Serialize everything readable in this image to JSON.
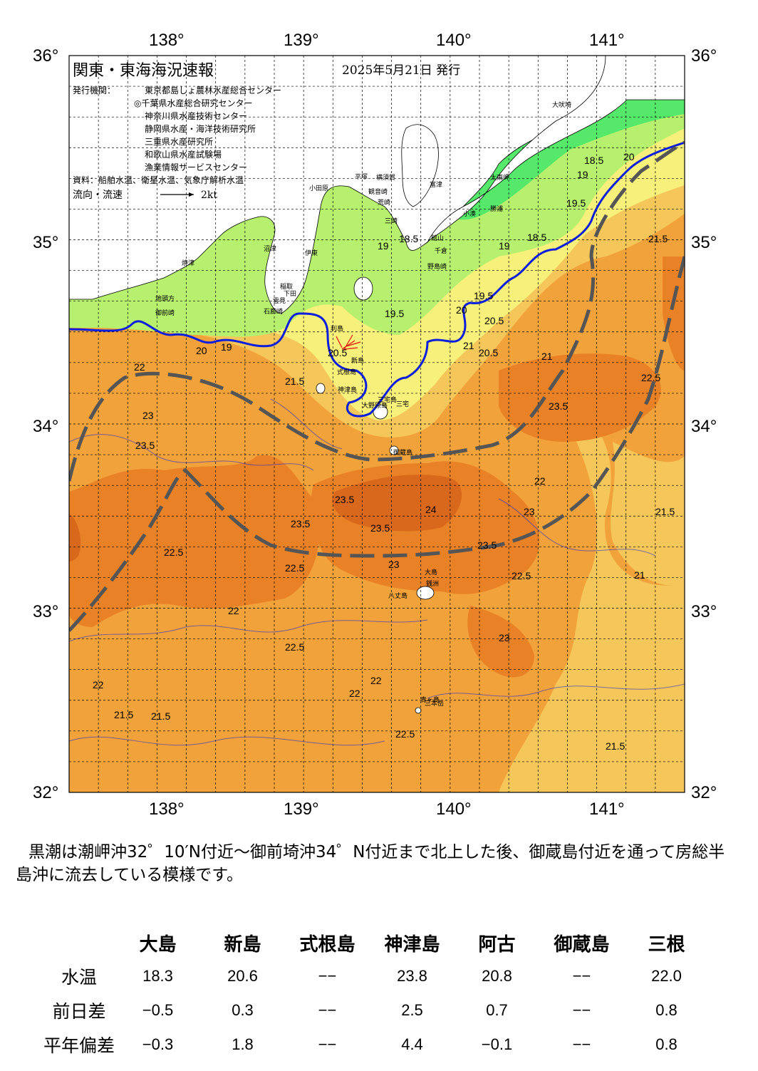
{
  "map": {
    "title": "関東・東海海況速報",
    "issue_date": "2025年5月21日 発行",
    "issuer_label": "発行機関：",
    "issuers": [
      "東京都島しょ農林水産総合センター",
      "◎千葉県水産総合研究センター",
      "神奈川県水産技術センター",
      "静岡県水産・海洋技術研究所",
      "三重県水産研究所",
      "和歌山県水産試験場",
      "漁業情報サービスセンター"
    ],
    "source": "資料：船舶水温、衛星水温、気象庁解析水温",
    "current_legend": "流向・流速",
    "current_scale": "2kt",
    "lon_labels": [
      "138°",
      "139°",
      "140°",
      "141°"
    ],
    "lat_labels": [
      "36°",
      "35°",
      "34°",
      "33°",
      "32°"
    ],
    "colors": {
      "band_18": "#56e86a",
      "band_19": "#b6f06e",
      "band_20": "#f7f07a",
      "band_21": "#f5c75a",
      "band_22": "#f2a23a",
      "band_23": "#e98226",
      "band_24": "#d8681c",
      "land": "#ffffff",
      "current_line": "#0a1edc",
      "kuroshio_axis": "#555555",
      "contour": "#2e2ec8"
    },
    "contour_labels": [
      "18.5",
      "19",
      "19.5",
      "20",
      "20.5",
      "21",
      "21.5",
      "22",
      "22.5",
      "23",
      "23.5",
      "24"
    ],
    "place_names": [
      "大吠埼",
      "太東岬",
      "勝浦",
      "小湊",
      "富津",
      "横須賀",
      "観音崎",
      "荒崎",
      "三崎",
      "館山",
      "千倉",
      "野島崎",
      "平塚",
      "小田原",
      "沼津",
      "伊東",
      "焼津",
      "稲取",
      "下田",
      "雲見",
      "石廊崎",
      "地頭方",
      "御前崎",
      "大島",
      "利島",
      "新島",
      "式根島",
      "神津島",
      "三宅島",
      "御蔵島",
      "銭洲",
      "大野原島",
      "八丈島",
      "三本岳",
      "青ヶ島",
      "三宅"
    ]
  },
  "summary": "黒潮は潮岬沖32゜10′N付近～御前埼沖34゜N付近まで北上した後、御蔵島付近を通って房総半島沖に流去している模様です。",
  "table": {
    "stations": [
      "大島",
      "新島",
      "式根島",
      "神津島",
      "阿古",
      "御蔵島",
      "三根"
    ],
    "rows": [
      {
        "label": "水温",
        "values": [
          "18.3",
          "20.6",
          "−−",
          "23.8",
          "20.8",
          "−−",
          "22.0"
        ]
      },
      {
        "label": "前日差",
        "values": [
          "−0.5",
          "0.3",
          "−−",
          "2.5",
          "0.7",
          "−−",
          "0.8"
        ]
      },
      {
        "label": "平年偏差",
        "values": [
          "−0.3",
          "1.8",
          "−−",
          "4.4",
          "−0.1",
          "−−",
          "0.8"
        ]
      }
    ]
  }
}
